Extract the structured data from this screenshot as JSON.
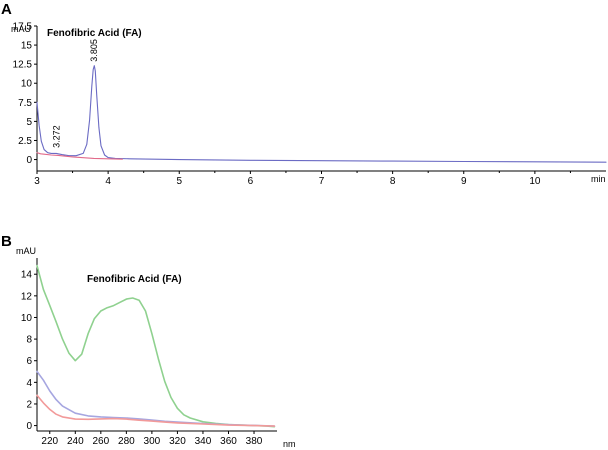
{
  "chart_data": [
    {
      "panel": "A",
      "type": "line",
      "title": "Fenofibric Acid (FA)",
      "ylabel": "mAU",
      "xlabel": "min",
      "xlim": [
        3,
        11
      ],
      "ylim": [
        -1.5,
        17.5
      ],
      "xticks": [
        3,
        4,
        5,
        6,
        7,
        8,
        9,
        10
      ],
      "yticks": [
        0,
        2.5,
        5,
        7.5,
        10,
        12.5,
        15,
        17.5
      ],
      "xtick_labels": [
        "3",
        "4",
        "5",
        "6",
        "7",
        "8",
        "9",
        "10"
      ],
      "ytick_labels": [
        "0",
        "2.5",
        "5",
        "7.5",
        "10",
        "12.5",
        "15",
        "17.5"
      ],
      "grid": false,
      "peak_labels": [
        {
          "x": 3.272,
          "y": 1.0,
          "text": "3.272"
        },
        {
          "x": 3.805,
          "y": 12.3,
          "text": "3.805"
        }
      ],
      "series": [
        {
          "color": "#6b6bc4",
          "x": [
            3.0,
            3.03,
            3.06,
            3.1,
            3.15,
            3.2,
            3.272,
            3.35,
            3.45,
            3.55,
            3.65,
            3.7,
            3.74,
            3.77,
            3.79,
            3.805,
            3.82,
            3.84,
            3.87,
            3.9,
            3.95,
            4.0,
            4.1,
            4.3,
            5.0,
            6.0,
            7.0,
            8.0,
            9.0,
            10.0,
            11.0
          ],
          "y": [
            7.5,
            4.5,
            2.4,
            1.3,
            0.9,
            0.8,
            0.8,
            0.65,
            0.5,
            0.5,
            0.8,
            2.0,
            5.2,
            9.6,
            11.8,
            12.3,
            11.6,
            8.5,
            4.2,
            1.8,
            0.6,
            0.25,
            0.15,
            0.1,
            0.0,
            -0.1,
            -0.15,
            -0.2,
            -0.25,
            -0.3,
            -0.35
          ]
        },
        {
          "color": "#e26a8a",
          "x": [
            3.0,
            3.05,
            3.1,
            3.2,
            3.3,
            3.5,
            3.8,
            4.0,
            4.2
          ],
          "y": [
            0.9,
            0.75,
            0.7,
            0.6,
            0.55,
            0.35,
            0.15,
            0.1,
            0.05
          ]
        }
      ]
    },
    {
      "panel": "B",
      "type": "line",
      "title": "Fenofibric Acid (FA)",
      "ylabel": "mAU",
      "xlabel": "nm",
      "xlim": [
        210,
        398
      ],
      "ylim": [
        -0.5,
        15.5
      ],
      "xticks": [
        220,
        240,
        260,
        280,
        300,
        320,
        340,
        360,
        380
      ],
      "yticks": [
        0,
        2,
        4,
        6,
        8,
        10,
        12,
        14
      ],
      "xtick_labels": [
        "220",
        "240",
        "260",
        "280",
        "300",
        "320",
        "340",
        "360",
        "380"
      ],
      "ytick_labels": [
        "0",
        "2",
        "4",
        "6",
        "8",
        "10",
        "12",
        "14"
      ],
      "grid": false,
      "series": [
        {
          "color": "#8fd18f",
          "x": [
            210,
            215,
            220,
            225,
            230,
            235,
            240,
            245,
            250,
            255,
            260,
            265,
            270,
            275,
            280,
            285,
            290,
            295,
            300,
            305,
            310,
            315,
            320,
            325,
            330,
            340,
            350,
            360,
            370,
            380,
            390,
            396
          ],
          "y": [
            14.8,
            12.6,
            11.1,
            9.6,
            8.0,
            6.7,
            6.0,
            6.6,
            8.5,
            9.9,
            10.6,
            10.9,
            11.1,
            11.4,
            11.7,
            11.8,
            11.6,
            10.6,
            8.5,
            6.2,
            4.1,
            2.6,
            1.6,
            1.0,
            0.7,
            0.35,
            0.2,
            0.1,
            0.05,
            0.0,
            -0.05,
            -0.1
          ]
        },
        {
          "color": "#a6a6e0",
          "x": [
            210,
            215,
            220,
            225,
            230,
            240,
            250,
            260,
            270,
            280,
            290,
            300,
            310,
            320,
            340,
            360,
            380,
            396
          ],
          "y": [
            5.0,
            4.2,
            3.2,
            2.4,
            1.8,
            1.15,
            0.9,
            0.8,
            0.75,
            0.7,
            0.62,
            0.52,
            0.4,
            0.32,
            0.18,
            0.08,
            0.02,
            -0.05
          ]
        },
        {
          "color": "#f29a9a",
          "x": [
            210,
            215,
            220,
            225,
            230,
            240,
            250,
            260,
            270,
            280,
            290,
            300,
            310,
            320,
            340,
            360,
            380,
            396
          ],
          "y": [
            2.8,
            2.1,
            1.5,
            1.05,
            0.8,
            0.6,
            0.58,
            0.62,
            0.65,
            0.6,
            0.5,
            0.42,
            0.32,
            0.25,
            0.15,
            0.05,
            0.0,
            -0.05
          ]
        }
      ]
    }
  ]
}
